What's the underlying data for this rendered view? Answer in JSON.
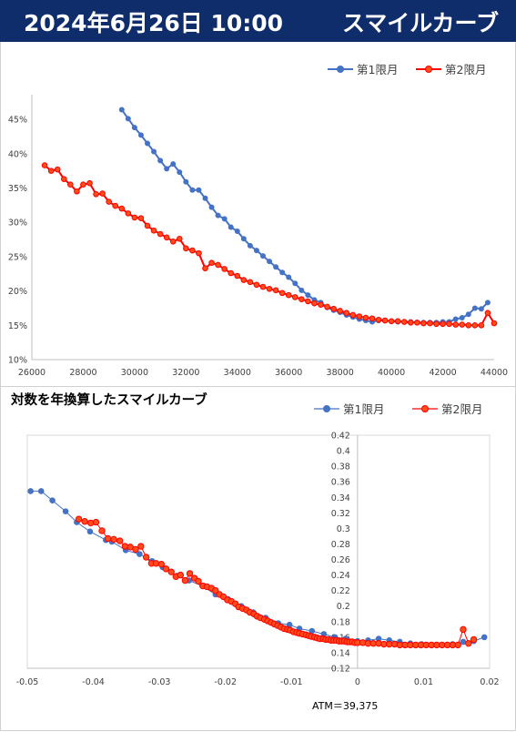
{
  "header": {
    "date_time": "2024年6月26日 10:00",
    "title": "スマイルカーブ"
  },
  "colors": {
    "header_bg": "#0f2d6b",
    "series1": "#4472c4",
    "series2": "#ff0000",
    "series2_marker": "#ff4d1a"
  },
  "chart_data": [
    {
      "type": "line",
      "title": "",
      "xlabel": "",
      "ylabel": "",
      "legend_position": "top-right",
      "grid": "none",
      "xlim": [
        26000,
        44000
      ],
      "ylim": [
        0.1,
        0.47
      ],
      "x_ticks": [
        26000,
        28000,
        30000,
        32000,
        34000,
        36000,
        38000,
        40000,
        42000,
        44000
      ],
      "x_tick_labels": [
        "26000",
        "28000",
        "30000",
        "32000",
        "34000",
        "36000",
        "38000",
        "40000",
        "42000",
        "44000"
      ],
      "y_ticks": [
        0.1,
        0.15,
        0.2,
        0.25,
        0.3,
        0.35,
        0.4,
        0.45
      ],
      "y_tick_labels": [
        "10%",
        "15%",
        "20%",
        "25%",
        "30%",
        "35%",
        "40%",
        "45%"
      ],
      "series": [
        {
          "name": "第1限月",
          "color": "#4472c4",
          "x": [
            29500,
            29750,
            30000,
            30250,
            30500,
            30750,
            31000,
            31250,
            31500,
            31750,
            32000,
            32250,
            32500,
            32750,
            33000,
            33250,
            33500,
            33750,
            34000,
            34250,
            34500,
            34750,
            35000,
            35250,
            35500,
            35750,
            36000,
            36250,
            36500,
            36750,
            37000,
            37250,
            37500,
            37750,
            38000,
            38250,
            38500,
            38750,
            39000,
            39250,
            39500,
            39750,
            40000,
            40250,
            40500,
            40750,
            41000,
            41250,
            41500,
            41750,
            42000,
            42250,
            42500,
            42750,
            43000,
            43250,
            43500,
            43750
          ],
          "y": [
            0.464,
            0.451,
            0.438,
            0.427,
            0.415,
            0.403,
            0.39,
            0.378,
            0.385,
            0.373,
            0.359,
            0.347,
            0.347,
            0.335,
            0.322,
            0.31,
            0.305,
            0.293,
            0.287,
            0.276,
            0.266,
            0.259,
            0.251,
            0.243,
            0.235,
            0.227,
            0.22,
            0.211,
            0.201,
            0.194,
            0.187,
            0.183,
            0.176,
            0.172,
            0.169,
            0.165,
            0.162,
            0.159,
            0.157,
            0.155,
            0.157,
            0.157,
            0.156,
            0.155,
            0.155,
            0.155,
            0.154,
            0.154,
            0.154,
            0.154,
            0.155,
            0.155,
            0.159,
            0.161,
            0.166,
            0.175,
            0.174,
            0.183
          ]
        },
        {
          "name": "第2限月",
          "color": "#ff0000",
          "x": [
            26500,
            26750,
            27000,
            27250,
            27500,
            27750,
            28000,
            28250,
            28500,
            28750,
            29000,
            29250,
            29500,
            29750,
            30000,
            30250,
            30500,
            30750,
            31000,
            31250,
            31500,
            31750,
            32000,
            32250,
            32500,
            32750,
            33000,
            33250,
            33500,
            33750,
            34000,
            34250,
            34500,
            34750,
            35000,
            35250,
            35500,
            35750,
            36000,
            36250,
            36500,
            36750,
            37000,
            37250,
            37500,
            37750,
            38000,
            38250,
            38500,
            38750,
            39000,
            39250,
            39500,
            39750,
            40000,
            40250,
            40500,
            40750,
            41000,
            41250,
            41500,
            41750,
            42000,
            42250,
            42500,
            42750,
            43000,
            43250,
            43500,
            43750,
            44000
          ],
          "y": [
            0.383,
            0.375,
            0.377,
            0.363,
            0.355,
            0.345,
            0.355,
            0.357,
            0.341,
            0.342,
            0.33,
            0.324,
            0.32,
            0.313,
            0.307,
            0.306,
            0.295,
            0.288,
            0.283,
            0.278,
            0.272,
            0.276,
            0.262,
            0.259,
            0.255,
            0.233,
            0.241,
            0.238,
            0.232,
            0.226,
            0.222,
            0.216,
            0.213,
            0.209,
            0.206,
            0.203,
            0.201,
            0.197,
            0.194,
            0.191,
            0.188,
            0.185,
            0.182,
            0.18,
            0.177,
            0.174,
            0.171,
            0.168,
            0.165,
            0.163,
            0.161,
            0.16,
            0.158,
            0.157,
            0.156,
            0.156,
            0.155,
            0.154,
            0.154,
            0.153,
            0.153,
            0.152,
            0.152,
            0.152,
            0.151,
            0.151,
            0.15,
            0.15,
            0.15,
            0.168,
            0.153
          ]
        }
      ]
    },
    {
      "type": "scatter",
      "title": "対数を年換算したスマイルカーブ",
      "xlabel": "",
      "ylabel": "",
      "legend_position": "top-right",
      "grid": "none",
      "annotation": "ATM＝39,375",
      "xlim": [
        -0.05,
        0.02
      ],
      "ylim": [
        0.12,
        0.42
      ],
      "x_ticks": [
        -0.05,
        -0.04,
        -0.03,
        -0.02,
        -0.01,
        0,
        0.01,
        0.02
      ],
      "x_tick_labels": [
        "-0.05",
        "-0.04",
        "-0.03",
        "-0.02",
        "-0.01",
        "0",
        "0.01",
        "0.02"
      ],
      "y_ticks": [
        0.12,
        0.14,
        0.16,
        0.18,
        0.2,
        0.22,
        0.24,
        0.26,
        0.28,
        0.3,
        0.32,
        0.34,
        0.36,
        0.38,
        0.4,
        0.42
      ],
      "y_tick_labels": [
        "0.12",
        "0.14",
        "0.16",
        "0.18",
        "0.2",
        "0.22",
        "0.24",
        "0.26",
        "0.28",
        "0.3",
        "0.32",
        "0.34",
        "0.36",
        "0.38",
        "0.4",
        "0.42"
      ],
      "series": [
        {
          "name": "第1限月",
          "color": "#4472c4",
          "x": [
            -0.0495,
            -0.0479,
            -0.0462,
            -0.0442,
            -0.0425,
            -0.0405,
            -0.0381,
            -0.0372,
            -0.0351,
            -0.033,
            -0.0311,
            -0.0295,
            -0.0273,
            -0.0255,
            -0.0235,
            -0.0215,
            -0.0196,
            -0.0176,
            -0.0158,
            -0.0139,
            -0.012,
            -0.0103,
            -0.0088,
            -0.0069,
            -0.0051,
            -0.0034,
            -0.0018,
            0.0,
            0.0016,
            0.0032,
            0.0048,
            0.0064,
            0.008,
            0.0097,
            0.0113,
            0.0128,
            0.0144,
            0.016,
            0.0176,
            0.0192
          ],
          "y": [
            0.348,
            0.348,
            0.336,
            0.322,
            0.308,
            0.296,
            0.285,
            0.283,
            0.272,
            0.267,
            0.258,
            0.25,
            0.239,
            0.233,
            0.226,
            0.215,
            0.209,
            0.2,
            0.192,
            0.185,
            0.178,
            0.176,
            0.171,
            0.168,
            0.164,
            0.16,
            0.158,
            0.155,
            0.156,
            0.158,
            0.156,
            0.154,
            0.152,
            0.151,
            0.15,
            0.15,
            0.151,
            0.154,
            0.155,
            0.16
          ]
        },
        {
          "name": "第2限月",
          "color": "#ff0000",
          "x": [
            -0.0422,
            -0.0413,
            -0.0404,
            -0.0396,
            -0.0387,
            -0.0378,
            -0.0369,
            -0.036,
            -0.0352,
            -0.0344,
            -0.0336,
            -0.0328,
            -0.032,
            -0.0312,
            -0.0305,
            -0.0297,
            -0.029,
            -0.0282,
            -0.0275,
            -0.0268,
            -0.0261,
            -0.0254,
            -0.0247,
            -0.0241,
            -0.0234,
            -0.0228,
            -0.0221,
            -0.0215,
            -0.0209,
            -0.0203,
            -0.0197,
            -0.0191,
            -0.0185,
            -0.018,
            -0.0174,
            -0.0168,
            -0.0163,
            -0.0157,
            -0.0152,
            -0.0147,
            -0.0141,
            -0.0136,
            -0.0131,
            -0.0126,
            -0.0121,
            -0.0116,
            -0.0111,
            -0.0106,
            -0.0102,
            -0.0097,
            -0.0092,
            -0.0088,
            -0.0083,
            -0.0078,
            -0.0074,
            -0.007,
            -0.0065,
            -0.0061,
            -0.0057,
            -0.0052,
            -0.0048,
            -0.0044,
            -0.004,
            -0.0036,
            -0.0032,
            -0.0028,
            -0.0024,
            -0.002,
            -0.0016,
            -0.0012,
            -0.0008,
            -0.0004,
            0.0,
            0.0008,
            0.0016,
            0.0024,
            0.0032,
            0.004,
            0.0048,
            0.0056,
            0.0064,
            0.0072,
            0.008,
            0.0088,
            0.0096,
            0.0104,
            0.0112,
            0.012,
            0.0128,
            0.0136,
            0.0144,
            0.0152,
            0.016,
            0.0168,
            0.0176
          ],
          "y": [
            0.312,
            0.309,
            0.307,
            0.308,
            0.297,
            0.287,
            0.286,
            0.284,
            0.277,
            0.276,
            0.273,
            0.277,
            0.263,
            0.255,
            0.255,
            0.254,
            0.248,
            0.244,
            0.238,
            0.24,
            0.233,
            0.242,
            0.236,
            0.232,
            0.226,
            0.225,
            0.223,
            0.22,
            0.215,
            0.212,
            0.208,
            0.206,
            0.203,
            0.199,
            0.197,
            0.195,
            0.192,
            0.19,
            0.187,
            0.185,
            0.183,
            0.181,
            0.179,
            0.177,
            0.175,
            0.173,
            0.171,
            0.17,
            0.169,
            0.167,
            0.166,
            0.165,
            0.164,
            0.163,
            0.162,
            0.161,
            0.16,
            0.159,
            0.158,
            0.158,
            0.157,
            0.157,
            0.156,
            0.156,
            0.156,
            0.155,
            0.155,
            0.155,
            0.154,
            0.154,
            0.154,
            0.153,
            0.153,
            0.153,
            0.152,
            0.152,
            0.152,
            0.151,
            0.151,
            0.151,
            0.15,
            0.15,
            0.15,
            0.15,
            0.15,
            0.15,
            0.15,
            0.15,
            0.15,
            0.15,
            0.15,
            0.15,
            0.17,
            0.152,
            0.157
          ]
        }
      ]
    }
  ]
}
